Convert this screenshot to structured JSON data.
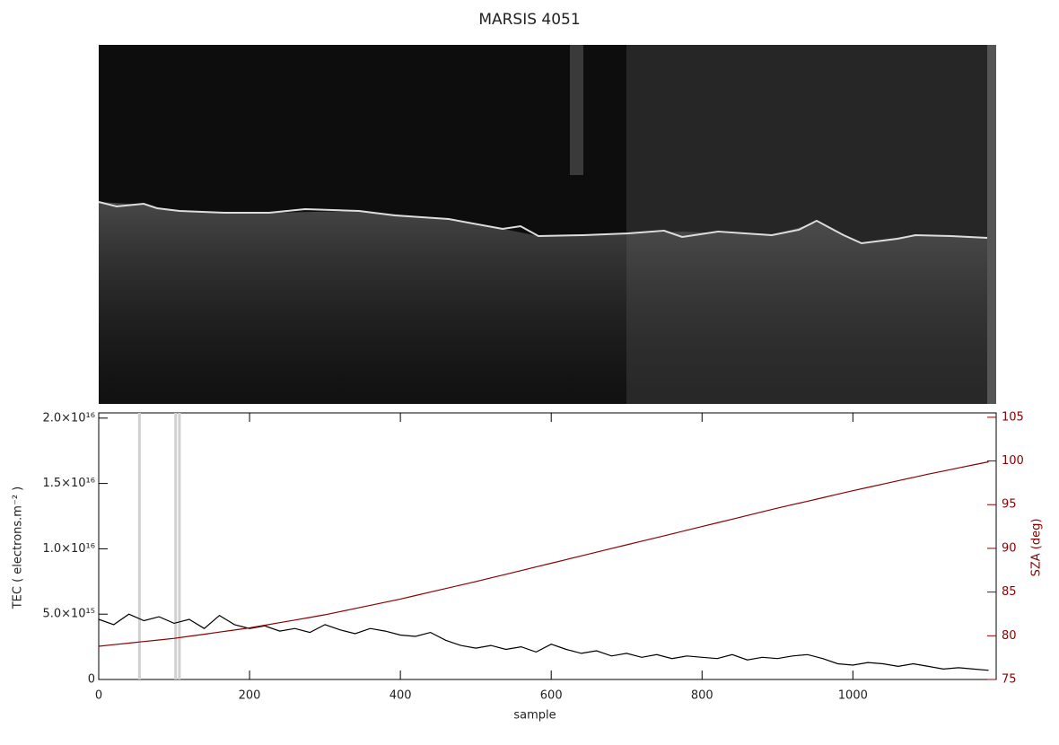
{
  "chart_data": {
    "type": "line",
    "title": "MARSIS 4051",
    "x_label": "sample",
    "y_label": "TEC ( electrons.m⁻² )",
    "y2_label": "SZA (deg)",
    "x": [
      0,
      20,
      40,
      60,
      80,
      100,
      120,
      140,
      160,
      180,
      200,
      220,
      240,
      260,
      280,
      300,
      320,
      340,
      360,
      380,
      400,
      420,
      440,
      460,
      480,
      500,
      520,
      540,
      560,
      580,
      600,
      620,
      640,
      660,
      680,
      700,
      720,
      740,
      760,
      780,
      800,
      820,
      840,
      860,
      880,
      900,
      920,
      940,
      960,
      980,
      1000,
      1020,
      1040,
      1060,
      1080,
      1100,
      1120,
      1140,
      1160,
      1180
    ],
    "xlim": [
      0,
      1190
    ],
    "xticks": [
      0,
      200,
      400,
      600,
      800,
      1000
    ],
    "ylim": [
      0,
      2.04e+16
    ],
    "yticks": [
      0,
      {
        "value": 5000000000000000.0,
        "label": "5.0×10¹⁵"
      },
      {
        "value": 1e+16,
        "label": "1.0×10¹⁶"
      },
      {
        "value": 1.5e+16,
        "label": "1.5×10¹⁶"
      },
      {
        "value": 2e+16,
        "label": "2.0×10¹⁶"
      }
    ],
    "y2lim": [
      75,
      105.5
    ],
    "y2ticks": [
      75,
      80,
      85,
      90,
      95,
      100,
      105
    ],
    "vlines": [
      54,
      102,
      107
    ],
    "vline_color": "#d0d0d0",
    "series": [
      {
        "name": "TEC",
        "color": "#000000",
        "values": [
          4600000000000000.0,
          4200000000000000.0,
          5000000000000000.0,
          4500000000000000.0,
          4800000000000000.0,
          4300000000000000.0,
          4600000000000000.0,
          3900000000000000.0,
          4900000000000000.0,
          4200000000000000.0,
          3900000000000000.0,
          4100000000000000.0,
          3700000000000000.0,
          3900000000000000.0,
          3600000000000000.0,
          4200000000000000.0,
          3800000000000000.0,
          3500000000000000.0,
          3900000000000000.0,
          3700000000000000.0,
          3400000000000000.0,
          3300000000000000.0,
          3600000000000000.0,
          3000000000000000.0,
          2600000000000000.0,
          2400000000000000.0,
          2600000000000000.0,
          2300000000000000.0,
          2500000000000000.0,
          2100000000000000.0,
          2700000000000000.0,
          2300000000000000.0,
          2000000000000000.0,
          2200000000000000.0,
          1800000000000000.0,
          2000000000000000.0,
          1700000000000000.0,
          1900000000000000.0,
          1600000000000000.0,
          1800000000000000.0,
          1700000000000000.0,
          1600000000000000.0,
          1900000000000000.0,
          1500000000000000.0,
          1700000000000000.0,
          1600000000000000.0,
          1800000000000000.0,
          1900000000000000.0,
          1600000000000000.0,
          1200000000000000.0,
          1100000000000000.0,
          1300000000000000.0,
          1200000000000000.0,
          1000000000000000.0,
          1200000000000000.0,
          1000000000000000.0,
          800000000000000.0,
          900000000000000.0,
          800000000000000.0,
          700000000000000.0
        ]
      },
      {
        "name": "SZA",
        "color": "#8b0000",
        "axis": "y2",
        "values": [
          78.8,
          78.98,
          79.16,
          79.34,
          79.52,
          79.7,
          79.94,
          80.18,
          80.42,
          80.66,
          80.9,
          81.2,
          81.5,
          81.8,
          82.1,
          82.4,
          82.76,
          83.12,
          83.48,
          83.84,
          84.2,
          84.6,
          85.0,
          85.4,
          85.8,
          86.2,
          86.62,
          87.04,
          87.46,
          87.88,
          88.3,
          88.72,
          89.14,
          89.56,
          89.98,
          90.4,
          90.82,
          91.24,
          91.66,
          92.08,
          92.5,
          92.92,
          93.34,
          93.76,
          94.18,
          94.6,
          95.0,
          95.4,
          95.8,
          96.2,
          96.6,
          96.98,
          97.36,
          97.74,
          98.12,
          98.5,
          98.85,
          99.2,
          99.55,
          99.9
        ]
      }
    ]
  }
}
